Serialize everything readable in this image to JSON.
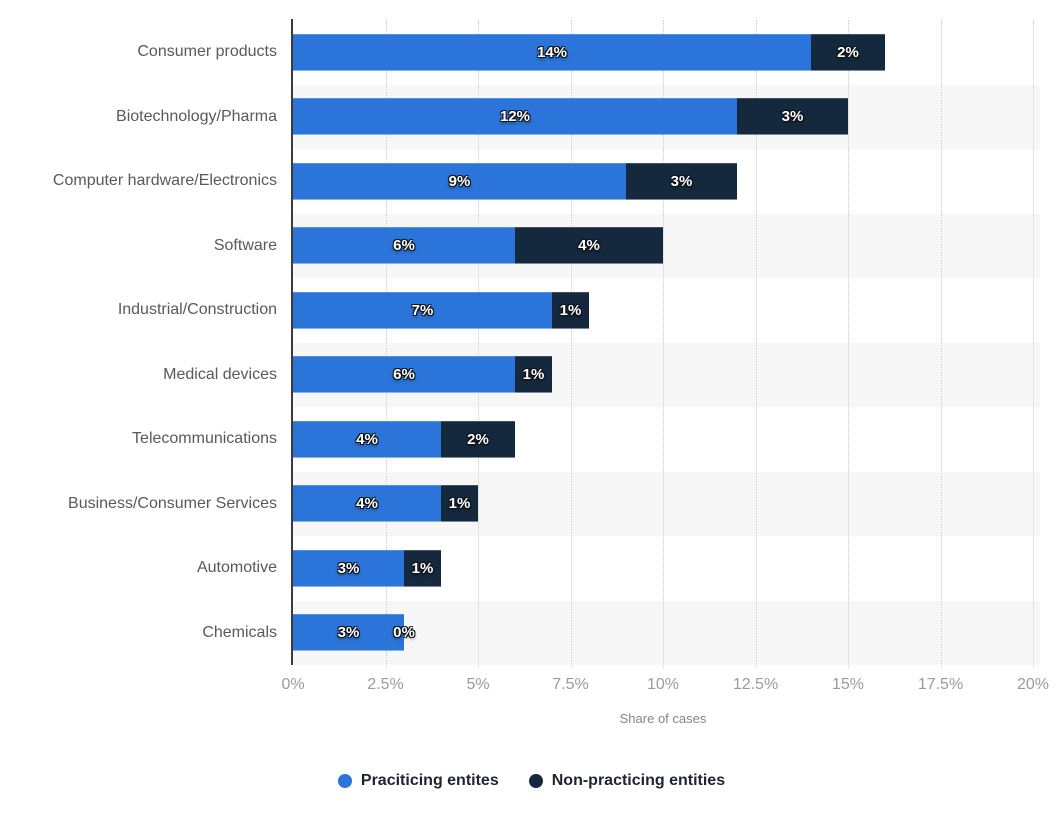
{
  "chart_data": {
    "type": "bar",
    "orientation": "horizontal",
    "stacked": true,
    "title": "",
    "xlabel": "Share of cases",
    "ylabel": "",
    "xlim": [
      0,
      20
    ],
    "x_ticks": [
      "0%",
      "2.5%",
      "5%",
      "7.5%",
      "10%",
      "12.5%",
      "15%",
      "17.5%",
      "20%"
    ],
    "x_tick_values": [
      0,
      2.5,
      5,
      7.5,
      10,
      12.5,
      15,
      17.5,
      20
    ],
    "grid": "dotted-vertical",
    "legend_position": "bottom-center",
    "value_label_suffix": "%",
    "categories": [
      "Consumer products",
      "Biotechnology/Pharma",
      "Computer hardware/Electronics",
      "Software",
      "Industrial/Construction",
      "Medical devices",
      "Telecommunications",
      "Business/Consumer Services",
      "Automotive",
      "Chemicals"
    ],
    "series": [
      {
        "name": "Praciticing entites",
        "color": "#2b74d9",
        "values": [
          14,
          12,
          9,
          6,
          7,
          6,
          4,
          4,
          3,
          3
        ]
      },
      {
        "name": "Non-practicing entities",
        "color": "#15293e",
        "values": [
          2,
          3,
          3,
          4,
          1,
          1,
          2,
          1,
          1,
          0
        ]
      }
    ],
    "colors": {
      "row_stripe_even": "#ffffff",
      "row_stripe_odd": "#f7f7f8",
      "grid_line": "#cccccc",
      "axis_line": "#3b3b3b",
      "category_label": "#58595b",
      "tick_label": "#9b9b9b",
      "axis_title": "#8a857f",
      "legend_text": "#1f2430",
      "value_label": "#ffffff"
    }
  }
}
